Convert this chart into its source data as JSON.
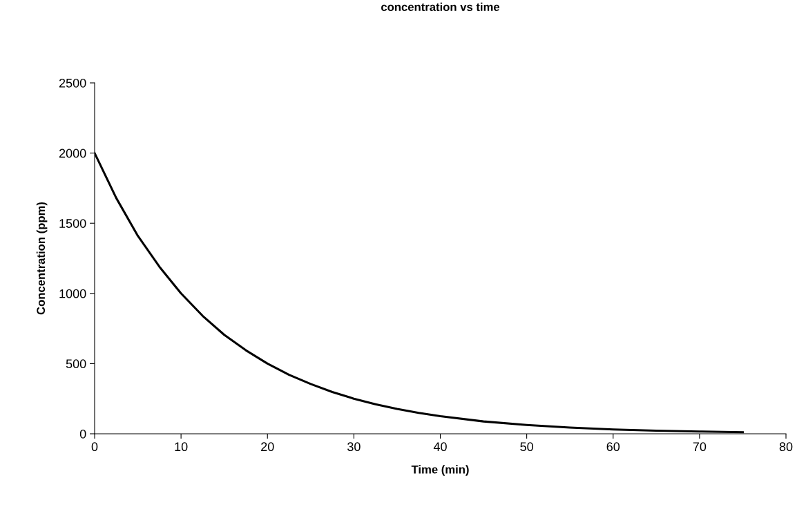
{
  "chart_data": {
    "type": "line",
    "title": "concentration vs time",
    "xlabel": "Time (min)",
    "ylabel": "Concentration (ppm)",
    "x": [
      0,
      2.5,
      5,
      7.5,
      10,
      12.5,
      15,
      17.5,
      20,
      22.5,
      25,
      27.5,
      30,
      32.5,
      35,
      37.5,
      40,
      45,
      50,
      55,
      60,
      65,
      70,
      75
    ],
    "series": [
      {
        "color": "#000000",
        "values": [
          2000,
          1680,
          1410,
          1190,
          1000,
          840,
          705,
          595,
          500,
          420,
          355,
          298,
          250,
          210,
          177,
          149,
          125,
          88,
          63,
          44,
          31,
          22,
          16,
          11
        ]
      }
    ],
    "xlim": [
      0,
      80
    ],
    "xticks": [
      0,
      10,
      20,
      30,
      40,
      50,
      60,
      70,
      80
    ],
    "ylim": [
      0,
      2500
    ],
    "yticks": [
      0,
      500,
      1000,
      1500,
      2000,
      2500
    ],
    "grid": false,
    "legend": false,
    "marker": "none",
    "line_style": "solid"
  }
}
